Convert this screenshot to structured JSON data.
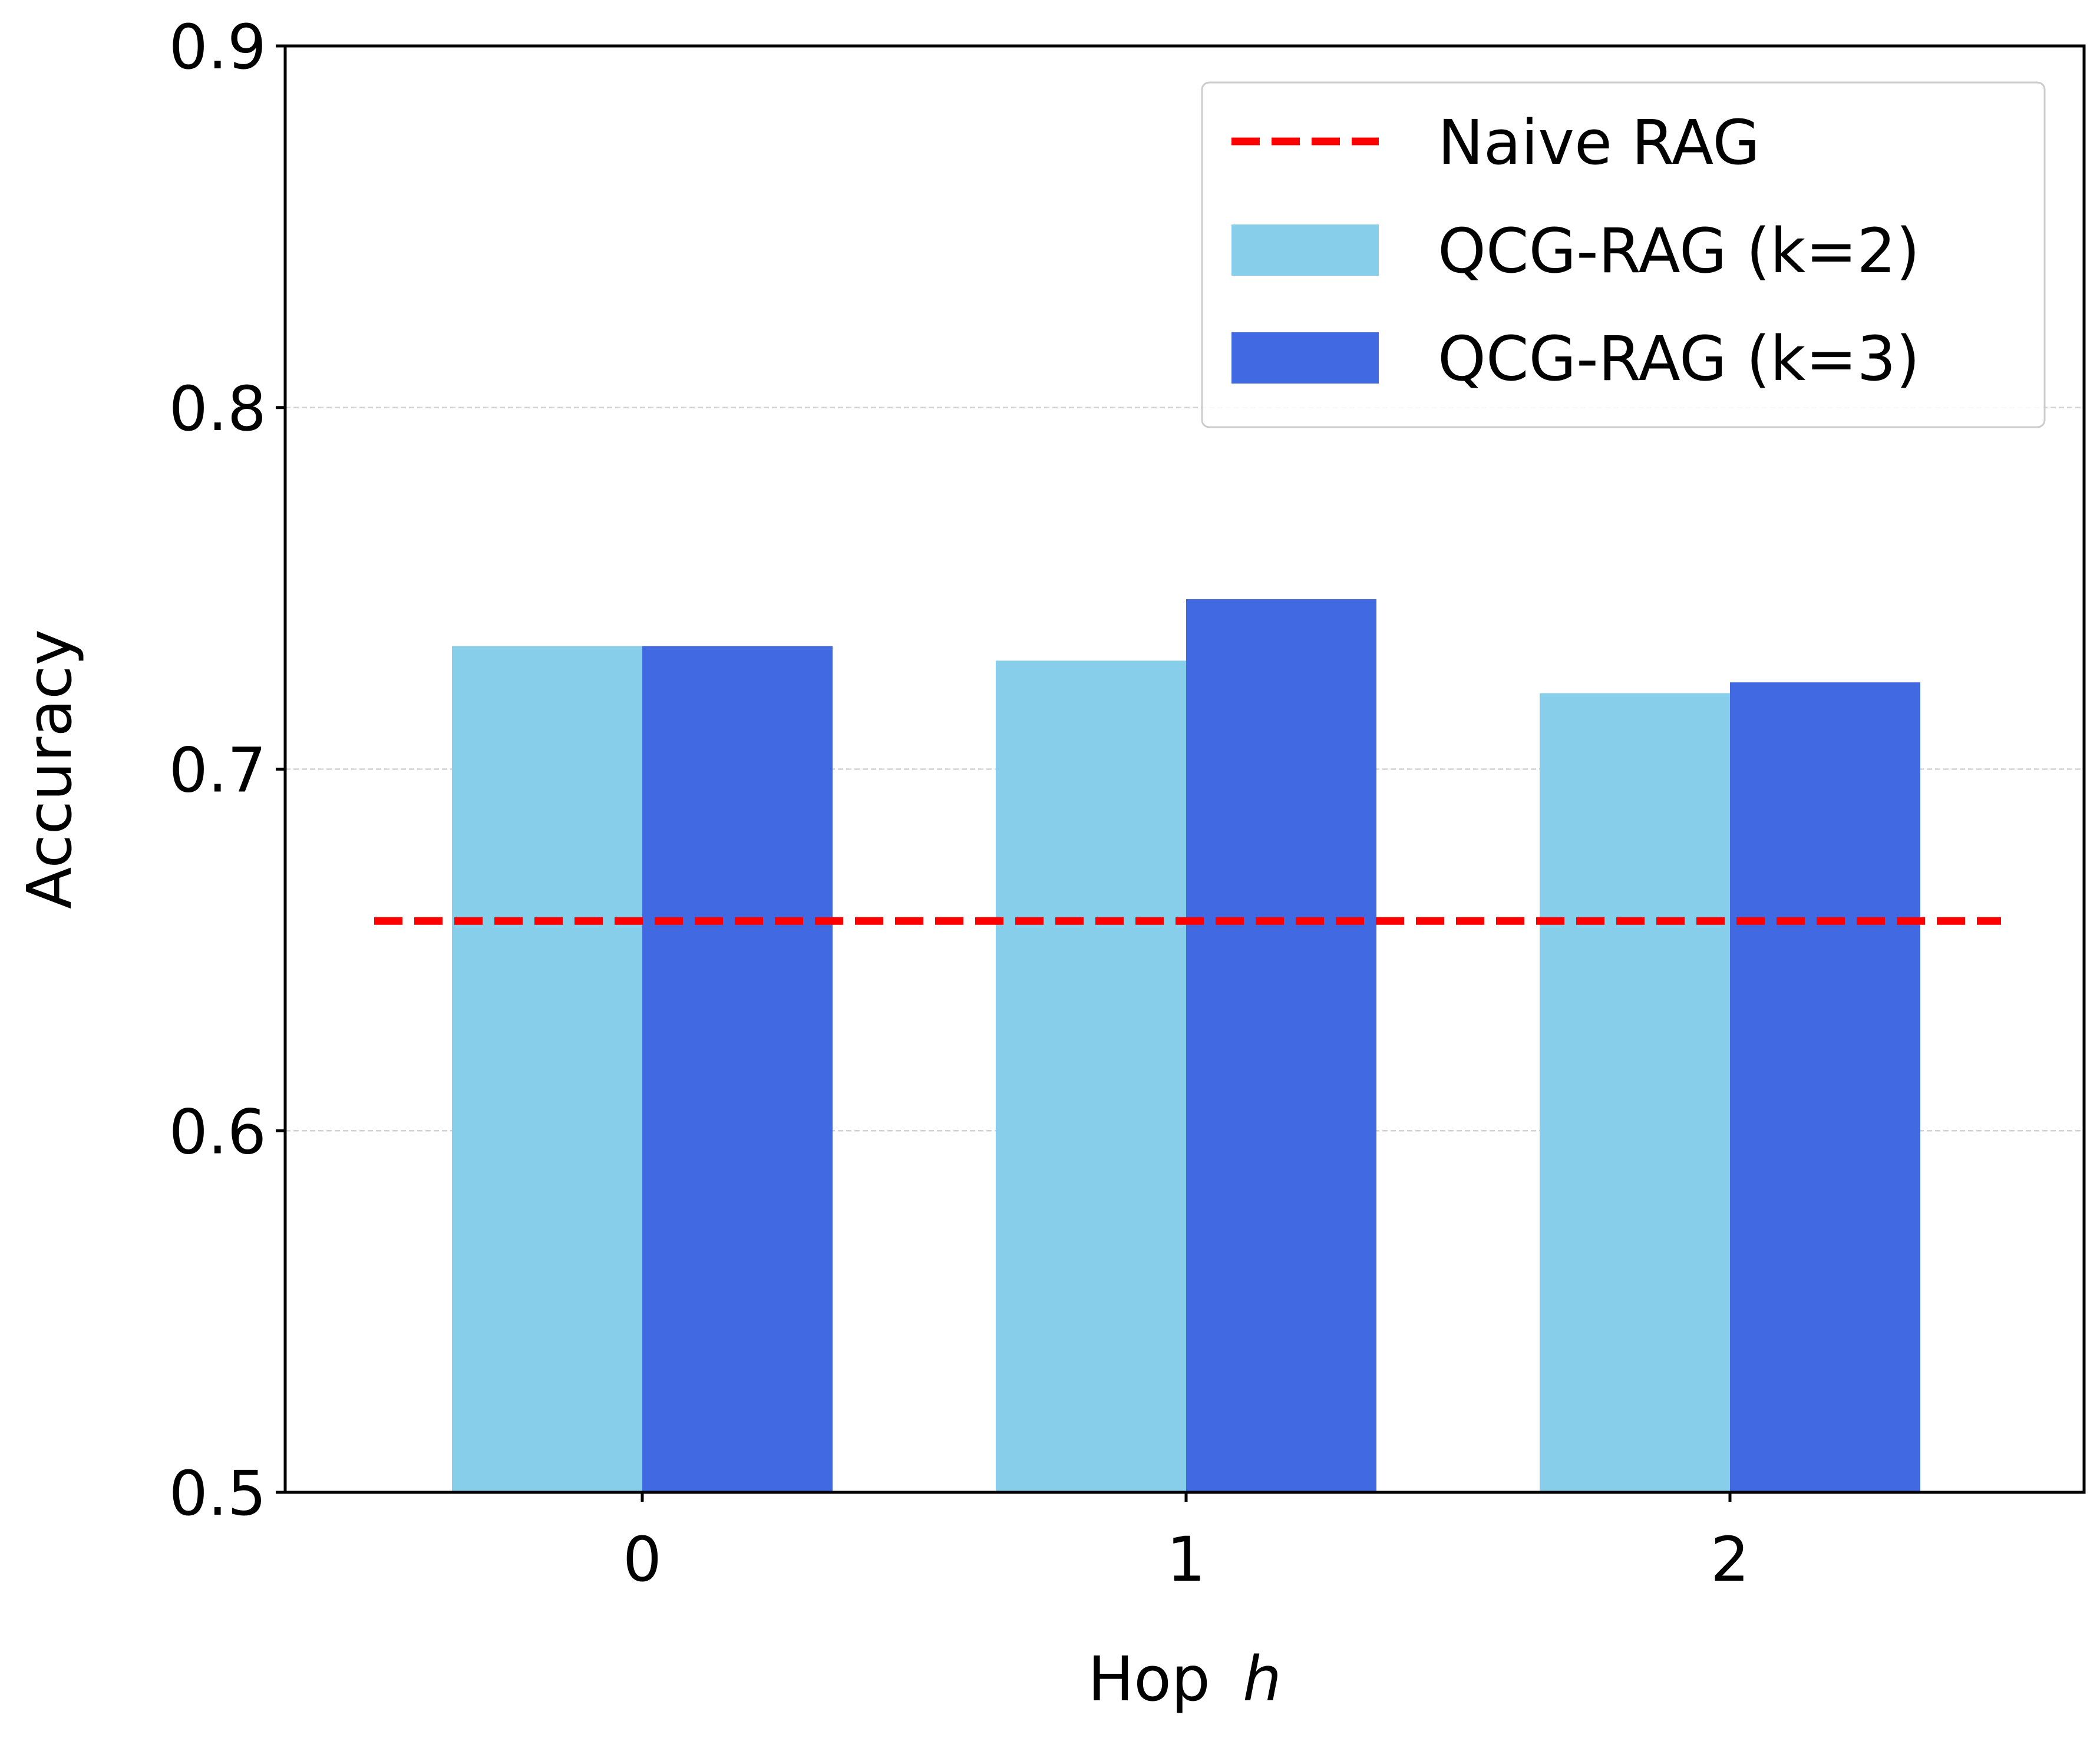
{
  "chart_data": {
    "type": "bar",
    "title": "",
    "xlabel": "Hop",
    "xlabel_var": "h",
    "ylabel": "Accuracy",
    "categories": [
      "0",
      "1",
      "2"
    ],
    "ylim": [
      0.5,
      0.9
    ],
    "yticks": [
      "0.5",
      "0.6",
      "0.7",
      "0.8",
      "0.9"
    ],
    "ytick_values": [
      0.5,
      0.6,
      0.7,
      0.8,
      0.9
    ],
    "grid": "horizontal dashed",
    "legend_position": "top-right",
    "series": [
      {
        "name": "QCG-RAG (k=2)",
        "color": "#87CEEB",
        "values": [
          0.734,
          0.73,
          0.721
        ]
      },
      {
        "name": "QCG-RAG (k=3)",
        "color": "#4169E1",
        "values": [
          0.734,
          0.747,
          0.724
        ]
      }
    ],
    "reference_lines": [
      {
        "name": "Naive RAG",
        "color": "#FF0000",
        "style": "dashed",
        "value": 0.658
      }
    ]
  }
}
